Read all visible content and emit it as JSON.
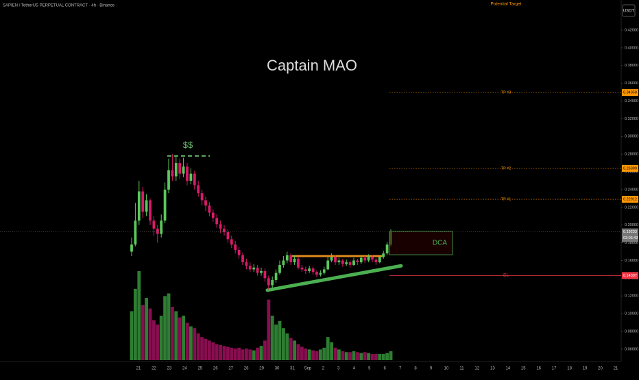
{
  "chart_data": {
    "type": "candlestick",
    "title": "SAPIEN / TetherUS PERPETUAL CONTRACT · 4h · Binance",
    "watermark": "Captain MAO",
    "currency_button": "USDT",
    "up_color": "#5bc85b",
    "down_color": "#d81b6a",
    "volume_up_color": "#2e7d32",
    "volume_down_color": "#880e4f",
    "x_labels": [
      "21",
      "22",
      "23",
      "24",
      "25",
      "26",
      "27",
      "28",
      "29",
      "30",
      "31",
      "Sep",
      "2",
      "3",
      "4",
      "5",
      "6",
      "7",
      "8",
      "9",
      "10",
      "11",
      "12",
      "13",
      "14",
      "15",
      "16",
      "17",
      "18",
      "19",
      "20",
      "21"
    ],
    "open": [
      0.17,
      0.178,
      0.205,
      0.238,
      0.215,
      0.228,
      0.205,
      0.196,
      0.19,
      0.205,
      0.24,
      0.262,
      0.255,
      0.27,
      0.258,
      0.266,
      0.25,
      0.258,
      0.245,
      0.236,
      0.228,
      0.222,
      0.214,
      0.208,
      0.201,
      0.196,
      0.192,
      0.184,
      0.178,
      0.172,
      0.166,
      0.158,
      0.154,
      0.15,
      0.152,
      0.146,
      0.148,
      0.14,
      0.132,
      0.138,
      0.146,
      0.155,
      0.16,
      0.166,
      0.158,
      0.162,
      0.152,
      0.15,
      0.148,
      0.151,
      0.147,
      0.144,
      0.146,
      0.15,
      0.16,
      0.164,
      0.158,
      0.16,
      0.156,
      0.158,
      0.155,
      0.16,
      0.158,
      0.163,
      0.16,
      0.164,
      0.161,
      0.158,
      0.164,
      0.168,
      0.178
    ],
    "high": [
      0.186,
      0.225,
      0.25,
      0.243,
      0.235,
      0.23,
      0.21,
      0.2,
      0.212,
      0.248,
      0.275,
      0.28,
      0.278,
      0.275,
      0.276,
      0.27,
      0.264,
      0.261,
      0.25,
      0.24,
      0.232,
      0.226,
      0.218,
      0.212,
      0.205,
      0.2,
      0.195,
      0.188,
      0.182,
      0.175,
      0.169,
      0.162,
      0.158,
      0.156,
      0.155,
      0.152,
      0.151,
      0.143,
      0.142,
      0.15,
      0.16,
      0.165,
      0.17,
      0.168,
      0.166,
      0.164,
      0.155,
      0.153,
      0.154,
      0.153,
      0.149,
      0.149,
      0.153,
      0.164,
      0.168,
      0.166,
      0.163,
      0.162,
      0.161,
      0.16,
      0.163,
      0.162,
      0.166,
      0.165,
      0.167,
      0.166,
      0.163,
      0.166,
      0.171,
      0.181,
      0.195
    ],
    "low": [
      0.165,
      0.176,
      0.2,
      0.208,
      0.21,
      0.2,
      0.188,
      0.18,
      0.186,
      0.202,
      0.236,
      0.25,
      0.25,
      0.252,
      0.254,
      0.245,
      0.246,
      0.24,
      0.232,
      0.222,
      0.216,
      0.21,
      0.204,
      0.197,
      0.191,
      0.188,
      0.18,
      0.174,
      0.168,
      0.162,
      0.155,
      0.15,
      0.147,
      0.147,
      0.143,
      0.143,
      0.136,
      0.127,
      0.129,
      0.135,
      0.144,
      0.152,
      0.157,
      0.155,
      0.155,
      0.15,
      0.147,
      0.145,
      0.146,
      0.144,
      0.141,
      0.142,
      0.144,
      0.149,
      0.158,
      0.155,
      0.155,
      0.153,
      0.154,
      0.152,
      0.154,
      0.155,
      0.156,
      0.157,
      0.158,
      0.158,
      0.155,
      0.157,
      0.162,
      0.166,
      0.176
    ],
    "close": [
      0.178,
      0.205,
      0.238,
      0.215,
      0.228,
      0.205,
      0.196,
      0.19,
      0.205,
      0.24,
      0.262,
      0.255,
      0.27,
      0.258,
      0.266,
      0.25,
      0.258,
      0.245,
      0.236,
      0.228,
      0.222,
      0.214,
      0.208,
      0.201,
      0.196,
      0.192,
      0.184,
      0.178,
      0.172,
      0.166,
      0.158,
      0.154,
      0.15,
      0.152,
      0.146,
      0.148,
      0.14,
      0.132,
      0.138,
      0.146,
      0.155,
      0.16,
      0.166,
      0.158,
      0.162,
      0.152,
      0.15,
      0.148,
      0.151,
      0.147,
      0.144,
      0.146,
      0.15,
      0.16,
      0.164,
      0.158,
      0.16,
      0.156,
      0.158,
      0.155,
      0.16,
      0.158,
      0.163,
      0.16,
      0.164,
      0.161,
      0.158,
      0.164,
      0.168,
      0.178,
      0.192
    ],
    "volume": [
      55,
      80,
      100,
      62,
      70,
      58,
      45,
      40,
      50,
      72,
      75,
      60,
      55,
      48,
      50,
      42,
      38,
      36,
      30,
      26,
      24,
      22,
      20,
      18,
      17,
      16,
      15,
      14,
      13,
      14,
      12,
      13,
      12,
      11,
      14,
      16,
      22,
      68,
      50,
      40,
      44,
      36,
      30,
      25,
      22,
      18,
      15,
      13,
      12,
      11,
      10,
      12,
      14,
      26,
      20,
      14,
      12,
      10,
      9,
      9,
      10,
      9,
      8,
      9,
      8,
      7,
      7,
      7,
      7,
      8,
      10
    ],
    "ylim": [
      0.046,
      0.454
    ],
    "yticks": [
      {
        "value": 0.06,
        "label": "0.06000"
      },
      {
        "value": 0.08,
        "label": "0.08000"
      },
      {
        "value": 0.1,
        "label": "0.10000"
      },
      {
        "value": 0.12,
        "label": "0.12000"
      },
      {
        "value": 0.14,
        "label": "0.14000"
      },
      {
        "value": 0.16,
        "label": "0.16000"
      },
      {
        "value": 0.18,
        "label": "0.18000"
      },
      {
        "value": 0.2,
        "label": "0.20000"
      },
      {
        "value": 0.22,
        "label": "0.22000"
      },
      {
        "value": 0.24,
        "label": "0.24000"
      },
      {
        "value": 0.26,
        "label": "0.26000"
      },
      {
        "value": 0.28,
        "label": "0.28000"
      },
      {
        "value": 0.3,
        "label": "0.30000"
      },
      {
        "value": 0.32,
        "label": "0.32000"
      },
      {
        "value": 0.34,
        "label": "0.34000"
      },
      {
        "value": 0.36,
        "label": "0.36000"
      },
      {
        "value": 0.38,
        "label": "0.38000"
      },
      {
        "value": 0.4,
        "label": "0.40000"
      },
      {
        "value": 0.42,
        "label": "0.42000"
      }
    ],
    "potential_target": "Potential Target",
    "targets": [
      {
        "label": "TP #3",
        "value": 0.34958
      },
      {
        "label": "TP #2",
        "value": 0.26399
      },
      {
        "label": "TP #1",
        "value": 0.22912
      }
    ],
    "target_color": "#ff9800",
    "stop_loss": {
      "label": "SL",
      "value": 0.14307,
      "color": "#f23645"
    },
    "current_price": {
      "value": 0.19233,
      "countdown": "03:05:43"
    },
    "dca_zone": {
      "label": "DCA",
      "top": 0.193,
      "bottom": 0.1665,
      "color": "#4caf50"
    },
    "liquidity": {
      "label": "$$",
      "value": 0.278,
      "color": "#66bb6a"
    },
    "resistance": {
      "value": 0.165,
      "color": "#e08a1e"
    },
    "trendline": {
      "start": 0.1265,
      "end": 0.154,
      "color": "#4caf50"
    }
  }
}
